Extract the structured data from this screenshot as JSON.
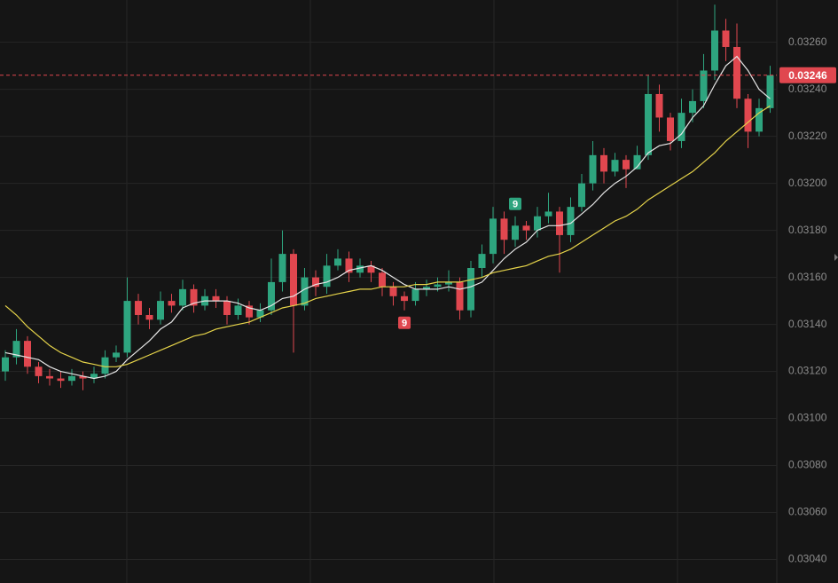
{
  "chart_data": {
    "type": "candlestick",
    "up_color": "#2ea57f",
    "down_color": "#e0474f",
    "grid": true,
    "ylim": [
      0.0303,
      0.03278
    ],
    "yticks": [
      {
        "value": 0.0304,
        "label": "0.03040"
      },
      {
        "value": 0.0306,
        "label": "0.03060"
      },
      {
        "value": 0.0308,
        "label": "0.03080"
      },
      {
        "value": 0.031,
        "label": "0.03100"
      },
      {
        "value": 0.0312,
        "label": "0.03120"
      },
      {
        "value": 0.0314,
        "label": "0.03140"
      },
      {
        "value": 0.0316,
        "label": "0.03160"
      },
      {
        "value": 0.0318,
        "label": "0.03180"
      },
      {
        "value": 0.032,
        "label": "0.03200"
      },
      {
        "value": 0.0322,
        "label": "0.03220"
      },
      {
        "value": 0.0324,
        "label": "0.03240"
      },
      {
        "value": 0.0326,
        "label": "0.03260"
      }
    ],
    "current_price": {
      "value": 0.03246,
      "label": "0.03246",
      "color": "#e0474f"
    },
    "open": [
      0.0312,
      0.03126,
      0.03133,
      0.03122,
      0.03118,
      0.03117,
      0.03116,
      0.03118,
      0.03117,
      0.03119,
      0.03126,
      0.03128,
      0.0315,
      0.03144,
      0.03142,
      0.0315,
      0.03148,
      0.03155,
      0.03148,
      0.03152,
      0.0315,
      0.03144,
      0.03148,
      0.03143,
      0.03146,
      0.03158,
      0.0317,
      0.03148,
      0.0316,
      0.03156,
      0.03165,
      0.03168,
      0.03162,
      0.03165,
      0.03162,
      0.03156,
      0.03152,
      0.0315,
      0.03155,
      0.03156,
      0.03157,
      0.03158,
      0.03146,
      0.03164,
      0.0317,
      0.03185,
      0.03176,
      0.03182,
      0.0318,
      0.03186,
      0.03188,
      0.03178,
      0.0319,
      0.032,
      0.03212,
      0.03205,
      0.0321,
      0.03206,
      0.03212,
      0.03238,
      0.03228,
      0.03218,
      0.0323,
      0.03235,
      0.03248,
      0.03265,
      0.03258,
      0.03236,
      0.03222,
      0.03232
    ],
    "high": [
      0.03129,
      0.03138,
      0.03135,
      0.03124,
      0.03121,
      0.0312,
      0.03121,
      0.0312,
      0.03122,
      0.03129,
      0.03131,
      0.0316,
      0.03153,
      0.03147,
      0.03154,
      0.03153,
      0.03159,
      0.03157,
      0.03155,
      0.03155,
      0.03152,
      0.03151,
      0.0315,
      0.03149,
      0.03168,
      0.0318,
      0.03172,
      0.03164,
      0.03163,
      0.0317,
      0.03172,
      0.03171,
      0.03168,
      0.03167,
      0.03164,
      0.03158,
      0.03154,
      0.03158,
      0.03159,
      0.0316,
      0.03163,
      0.0316,
      0.03167,
      0.03174,
      0.0319,
      0.03188,
      0.03186,
      0.03184,
      0.0319,
      0.03196,
      0.0319,
      0.03194,
      0.03204,
      0.03218,
      0.03215,
      0.03213,
      0.03212,
      0.03216,
      0.03246,
      0.03242,
      0.0323,
      0.03236,
      0.0324,
      0.03255,
      0.03276,
      0.0327,
      0.03268,
      0.03238,
      0.03236,
      0.0325
    ],
    "low": [
      0.03116,
      0.03123,
      0.03119,
      0.03115,
      0.03114,
      0.03113,
      0.03114,
      0.03112,
      0.03115,
      0.03117,
      0.03124,
      0.03126,
      0.0314,
      0.03138,
      0.0314,
      0.03145,
      0.03146,
      0.03145,
      0.03146,
      0.03147,
      0.0314,
      0.03142,
      0.0314,
      0.03141,
      0.03144,
      0.03154,
      0.03128,
      0.03146,
      0.03152,
      0.03153,
      0.03163,
      0.03158,
      0.0316,
      0.03158,
      0.03152,
      0.03148,
      0.03146,
      0.03148,
      0.03152,
      0.03154,
      0.03154,
      0.03142,
      0.03143,
      0.0316,
      0.03166,
      0.0317,
      0.03173,
      0.03176,
      0.03177,
      0.03183,
      0.03162,
      0.03175,
      0.03188,
      0.03197,
      0.032,
      0.03203,
      0.03198,
      0.03206,
      0.0321,
      0.03222,
      0.03214,
      0.03215,
      0.03226,
      0.03232,
      0.03244,
      0.03252,
      0.03232,
      0.03215,
      0.0322,
      0.0323
    ],
    "close": [
      0.03126,
      0.03133,
      0.03122,
      0.03118,
      0.03117,
      0.03116,
      0.03118,
      0.03117,
      0.03119,
      0.03126,
      0.03128,
      0.0315,
      0.03144,
      0.03142,
      0.0315,
      0.03148,
      0.03155,
      0.03148,
      0.03152,
      0.0315,
      0.03144,
      0.03148,
      0.03143,
      0.03146,
      0.03158,
      0.0317,
      0.03148,
      0.0316,
      0.03156,
      0.03165,
      0.03168,
      0.03162,
      0.03165,
      0.03162,
      0.03156,
      0.03152,
      0.0315,
      0.03155,
      0.03156,
      0.03157,
      0.03158,
      0.03146,
      0.03164,
      0.0317,
      0.03185,
      0.03176,
      0.03182,
      0.0318,
      0.03186,
      0.03188,
      0.03178,
      0.0319,
      0.032,
      0.03212,
      0.03205,
      0.0321,
      0.03206,
      0.03212,
      0.03238,
      0.03228,
      0.03218,
      0.0323,
      0.03235,
      0.03248,
      0.03265,
      0.03258,
      0.03236,
      0.03222,
      0.03232,
      0.03246
    ],
    "lines": [
      {
        "color": "#e6e6e6",
        "values": [
          0.03128,
          0.03127,
          0.03126,
          0.03125,
          0.03122,
          0.0312,
          0.03119,
          0.03118,
          0.03117,
          0.03118,
          0.0312,
          0.03125,
          0.03129,
          0.03133,
          0.03138,
          0.03141,
          0.03147,
          0.03149,
          0.0315,
          0.0315,
          0.0315,
          0.03149,
          0.03147,
          0.03146,
          0.03148,
          0.03151,
          0.03152,
          0.03155,
          0.03157,
          0.03158,
          0.0316,
          0.03163,
          0.03164,
          0.03165,
          0.03163,
          0.0316,
          0.03157,
          0.03155,
          0.03155,
          0.03155,
          0.03156,
          0.03155,
          0.03156,
          0.03158,
          0.03163,
          0.03168,
          0.03172,
          0.03175,
          0.0318,
          0.03182,
          0.03182,
          0.03183,
          0.03187,
          0.03191,
          0.03196,
          0.032,
          0.03203,
          0.03207,
          0.03213,
          0.03216,
          0.03217,
          0.03221,
          0.03228,
          0.03233,
          0.03242,
          0.0325,
          0.03254,
          0.03248,
          0.0324,
          0.03236
        ]
      },
      {
        "color": "#e6d44a",
        "values": [
          0.03148,
          0.03144,
          0.03139,
          0.03135,
          0.03131,
          0.03128,
          0.03126,
          0.03124,
          0.03123,
          0.03122,
          0.03122,
          0.03123,
          0.03125,
          0.03127,
          0.03129,
          0.03131,
          0.03133,
          0.03135,
          0.03136,
          0.03138,
          0.03139,
          0.0314,
          0.03141,
          0.03143,
          0.03145,
          0.03147,
          0.03148,
          0.03149,
          0.03151,
          0.03152,
          0.03153,
          0.03154,
          0.03155,
          0.03155,
          0.03156,
          0.03156,
          0.03156,
          0.03157,
          0.03157,
          0.03158,
          0.03158,
          0.03158,
          0.03159,
          0.0316,
          0.03162,
          0.03163,
          0.03164,
          0.03165,
          0.03167,
          0.03169,
          0.0317,
          0.03172,
          0.03175,
          0.03178,
          0.03181,
          0.03184,
          0.03186,
          0.03189,
          0.03193,
          0.03196,
          0.03199,
          0.03202,
          0.03205,
          0.03209,
          0.03213,
          0.03218,
          0.03222,
          0.03226,
          0.0323,
          0.03233
        ]
      }
    ],
    "annotations": [
      {
        "text": "9",
        "index": 46,
        "position": "above",
        "color": "#2ea57f"
      },
      {
        "text": "9",
        "index": 36,
        "position": "below",
        "color": "#e0474f"
      }
    ]
  }
}
